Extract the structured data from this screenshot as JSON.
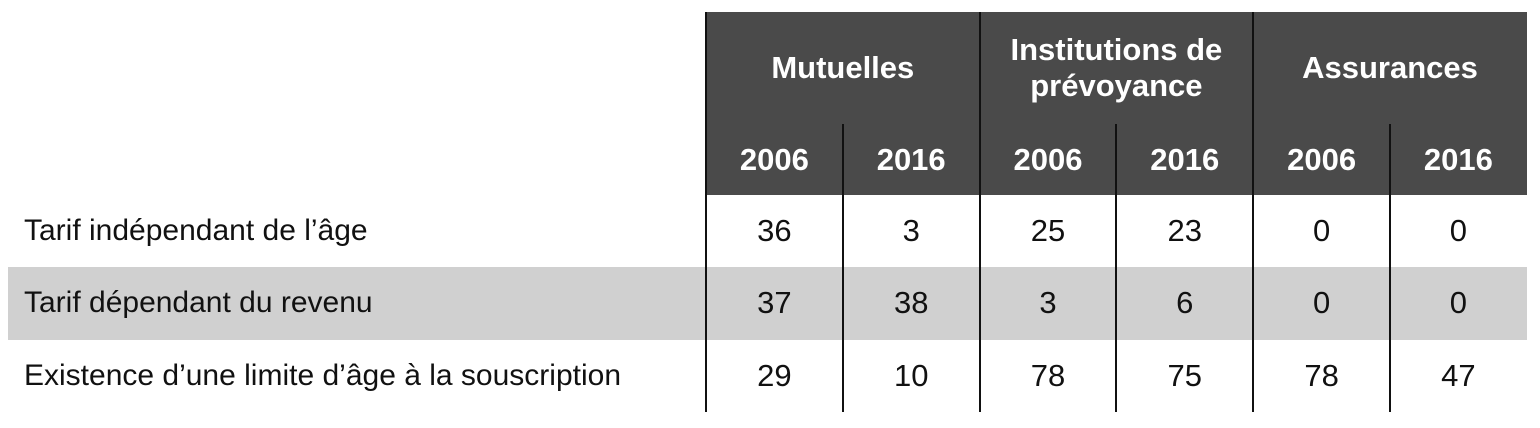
{
  "table": {
    "groups": [
      "Mutuelles",
      "Institutions de prévoyance",
      "Assurances"
    ],
    "years": [
      "2006",
      "2016",
      "2006",
      "2016",
      "2006",
      "2016"
    ],
    "rows": [
      {
        "label": "Tarif indépendant de l’âge",
        "values": [
          36,
          3,
          25,
          23,
          0,
          0
        ]
      },
      {
        "label": "Tarif dépendant du revenu",
        "values": [
          37,
          38,
          3,
          6,
          0,
          0
        ]
      },
      {
        "label": "Existence d’une limite d’âge à la souscription",
        "values": [
          29,
          10,
          78,
          75,
          78,
          47
        ]
      }
    ]
  }
}
